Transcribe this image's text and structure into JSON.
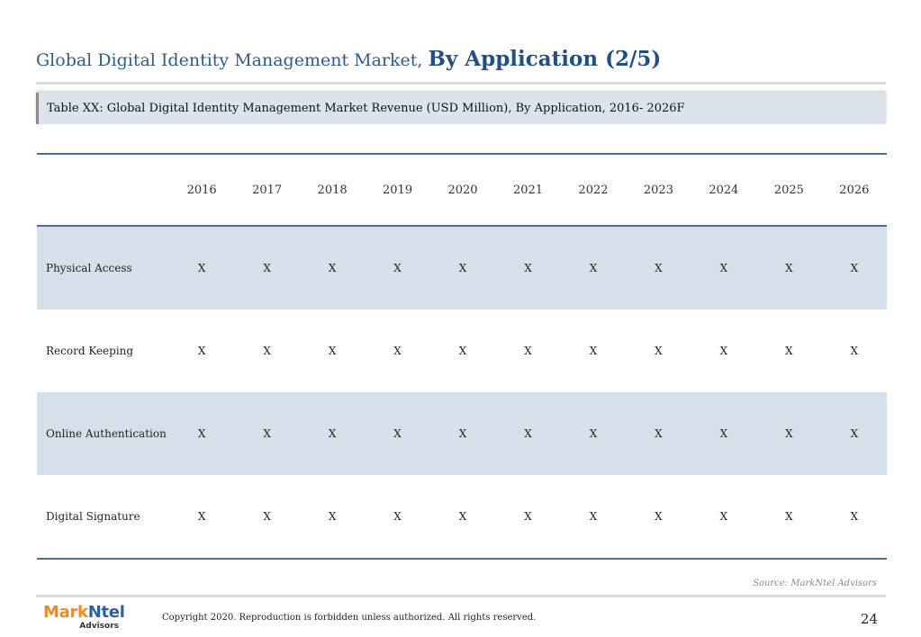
{
  "header": {
    "title_regular": "Global Digital Identity Management Market,",
    "title_bold": "By Application (2/5)"
  },
  "table_caption": "Table XX: Global Digital Identity Management Market Revenue (USD Million), By Application, 2016- 2026F",
  "table": {
    "columns": [
      "2016",
      "2017",
      "2018",
      "2019",
      "2020",
      "2021",
      "2022",
      "2023",
      "2024",
      "2025",
      "2026"
    ],
    "rows": [
      {
        "label": "Physical Access",
        "values": [
          "X",
          "X",
          "X",
          "X",
          "X",
          "X",
          "X",
          "X",
          "X",
          "X",
          "X"
        ]
      },
      {
        "label": "Record Keeping",
        "values": [
          "X",
          "X",
          "X",
          "X",
          "X",
          "X",
          "X",
          "X",
          "X",
          "X",
          "X"
        ]
      },
      {
        "label": "Online Authentication",
        "values": [
          "X",
          "X",
          "X",
          "X",
          "X",
          "X",
          "X",
          "X",
          "X",
          "X",
          "X"
        ]
      },
      {
        "label": "Digital Signature",
        "values": [
          "X",
          "X",
          "X",
          "X",
          "X",
          "X",
          "X",
          "X",
          "X",
          "X",
          "X"
        ]
      }
    ]
  },
  "source": "Source: MarkNtel Advisors",
  "footer": {
    "logo_mark_part1": "Mark",
    "logo_mark_part2": "Ntel",
    "logo_sub": "Advisors",
    "copyright": "Copyright 2020. Reproduction is forbidden unless authorized. All rights reserved.",
    "page_number": "24"
  },
  "colors": {
    "title": "#2f5a8a",
    "table_rule": "#4a6f9a",
    "shaded_row": "#d6e0ea",
    "caption_bg": "#dde3ec",
    "logo_orange": "#f08a1c",
    "logo_blue": "#2d5fa6"
  }
}
